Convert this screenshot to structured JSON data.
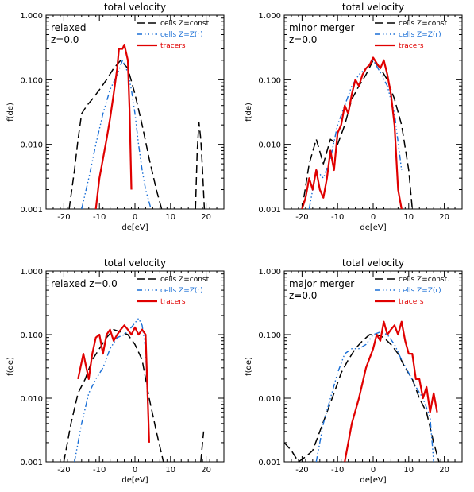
{
  "chart_data": [
    {
      "type": "line",
      "title": "total velocity",
      "xlabel": "de[eV]",
      "ylabel": "f(de)",
      "xlim": [
        -25,
        25
      ],
      "ylim": [
        0.001,
        1.0
      ],
      "yscale": "log",
      "x_ticks": [
        "-20",
        "-10",
        "0",
        "10",
        "20"
      ],
      "y_ticks": [
        "0.001",
        "0.010",
        "0.100",
        "1.000"
      ],
      "annotation": [
        "relaxed",
        "z=0.0"
      ],
      "legend_position": "top-right",
      "series": [
        {
          "name": "cells Z=const",
          "color": "#000000",
          "style": "dashed",
          "x": [
            -18.5,
            -17,
            -16,
            -15,
            -13.5,
            -12,
            -10,
            -8,
            -6,
            -4,
            -2,
            0,
            2,
            4,
            6,
            7.5
          ],
          "y": [
            0.001,
            0.004,
            0.012,
            0.03,
            0.04,
            0.05,
            0.07,
            0.1,
            0.15,
            0.2,
            0.15,
            0.06,
            0.02,
            0.006,
            0.002,
            0.001
          ]
        },
        {
          "name": "cells Z=Z(r)",
          "color": "#1a6fd6",
          "style": "dash-dot",
          "x": [
            -15,
            -13,
            -11,
            -9,
            -7,
            -5,
            -3.5,
            -2,
            -1,
            0,
            1,
            2,
            3,
            4.5
          ],
          "y": [
            0.001,
            0.003,
            0.01,
            0.03,
            0.07,
            0.12,
            0.2,
            0.13,
            0.07,
            0.03,
            0.01,
            0.004,
            0.002,
            0.001
          ]
        },
        {
          "name": "tracers",
          "color": "#e00000",
          "style": "solid",
          "x": [
            -11,
            -10,
            -9,
            -8,
            -7,
            -6,
            -5,
            -4.5,
            -3.5,
            -3,
            -2,
            -1.5,
            -1
          ],
          "y": [
            0.001,
            0.003,
            0.006,
            0.012,
            0.025,
            0.06,
            0.15,
            0.3,
            0.3,
            0.35,
            0.2,
            0.03,
            0.002
          ]
        },
        {
          "name": "",
          "color": "#000000",
          "style": "dashed",
          "x": [
            17,
            17.5,
            18,
            18.5,
            19,
            19.5
          ],
          "y": [
            0.001,
            0.008,
            0.022,
            0.012,
            0.004,
            0.001
          ]
        }
      ]
    },
    {
      "type": "line",
      "title": "total velocity",
      "xlabel": "de[eV]",
      "ylabel": "f(de)",
      "xlim": [
        -25,
        25
      ],
      "ylim": [
        0.001,
        1.0
      ],
      "yscale": "log",
      "x_ticks": [
        "-20",
        "-10",
        "0",
        "10",
        "20"
      ],
      "y_ticks": [
        "0.001",
        "0.010",
        "0.100",
        "1.000"
      ],
      "annotation": [
        "minor merger",
        "z=0.0"
      ],
      "legend_position": "top-right",
      "series": [
        {
          "name": "cells Z=const",
          "color": "#000000",
          "style": "dashed",
          "x": [
            -20,
            -18,
            -16,
            -14,
            -12,
            -10,
            -8,
            -6,
            -4,
            -2,
            0,
            2,
            4,
            6,
            8,
            10,
            11
          ],
          "y": [
            0.001,
            0.005,
            0.012,
            0.005,
            0.012,
            0.01,
            0.02,
            0.05,
            0.08,
            0.12,
            0.2,
            0.15,
            0.1,
            0.05,
            0.02,
            0.004,
            0.001
          ]
        },
        {
          "name": "cells Z=Z(r)",
          "color": "#1a6fd6",
          "style": "dash-dot",
          "x": [
            -18,
            -16,
            -14,
            -12,
            -10,
            -8,
            -6,
            -4,
            -2,
            0,
            2,
            4,
            6,
            8
          ],
          "y": [
            0.001,
            0.004,
            0.003,
            0.006,
            0.02,
            0.04,
            0.08,
            0.12,
            0.15,
            0.2,
            0.13,
            0.08,
            0.03,
            0.004
          ]
        },
        {
          "name": "tracers",
          "color": "#e00000",
          "style": "solid",
          "x": [
            -20,
            -19,
            -18,
            -17,
            -16,
            -15,
            -14,
            -13,
            -12,
            -11,
            -10,
            -9,
            -8,
            -7,
            -6,
            -5,
            -4,
            -3,
            -2,
            -1,
            0,
            1,
            2,
            3,
            4,
            5,
            6,
            7,
            8
          ],
          "y": [
            0.001,
            0.0015,
            0.003,
            0.002,
            0.004,
            0.002,
            0.0015,
            0.003,
            0.008,
            0.004,
            0.015,
            0.02,
            0.04,
            0.03,
            0.06,
            0.1,
            0.08,
            0.12,
            0.15,
            0.17,
            0.22,
            0.18,
            0.15,
            0.2,
            0.12,
            0.06,
            0.02,
            0.002,
            0.001
          ]
        }
      ]
    },
    {
      "type": "line",
      "title": "total velocity",
      "xlabel": "de[eV]",
      "ylabel": "f(de)",
      "xlim": [
        -25,
        25
      ],
      "ylim": [
        0.001,
        1.0
      ],
      "yscale": "log",
      "x_ticks": [
        "-20",
        "-10",
        "0",
        "10",
        "20"
      ],
      "y_ticks": [
        "0.001",
        "0.010",
        "0.100",
        "1.000"
      ],
      "annotation": [
        "relaxed z=0.0"
      ],
      "legend_position": "top-right",
      "series": [
        {
          "name": "cells Z=const.",
          "color": "#000000",
          "style": "dashed",
          "x": [
            -20,
            -18,
            -16,
            -14,
            -12,
            -10,
            -8,
            -6,
            -4,
            -2,
            0,
            2,
            4,
            6,
            8
          ],
          "y": [
            0.001,
            0.004,
            0.012,
            0.02,
            0.04,
            0.06,
            0.09,
            0.12,
            0.11,
            0.1,
            0.07,
            0.04,
            0.01,
            0.003,
            0.001
          ]
        },
        {
          "name": "cells Z=Z(r)",
          "color": "#1a6fd6",
          "style": "dash-dot",
          "x": [
            -17,
            -15,
            -13,
            -11,
            -9,
            -7,
            -5,
            -3,
            -1,
            1,
            2,
            3,
            4
          ],
          "y": [
            0.001,
            0.004,
            0.012,
            0.02,
            0.03,
            0.06,
            0.09,
            0.1,
            0.13,
            0.18,
            0.14,
            0.06,
            0.002
          ]
        },
        {
          "name": "tracers",
          "color": "#e00000",
          "style": "solid",
          "x": [
            -16,
            -14.5,
            -13,
            -12,
            -11,
            -10,
            -9,
            -8,
            -7,
            -6,
            -5,
            -4,
            -3,
            -2,
            -1,
            0,
            1,
            2,
            3,
            4
          ],
          "y": [
            0.02,
            0.05,
            0.02,
            0.05,
            0.09,
            0.1,
            0.05,
            0.1,
            0.12,
            0.08,
            0.1,
            0.12,
            0.14,
            0.12,
            0.1,
            0.13,
            0.1,
            0.12,
            0.1,
            0.002
          ]
        },
        {
          "name": "",
          "color": "#000000",
          "style": "dashed",
          "x": [
            18.5,
            19,
            19.3
          ],
          "y": [
            0.001,
            0.002,
            0.003
          ]
        }
      ]
    },
    {
      "type": "line",
      "title": "total velocity",
      "xlabel": "de[eV]",
      "ylabel": "f(de)",
      "xlim": [
        -25,
        25
      ],
      "ylim": [
        0.001,
        1.0
      ],
      "yscale": "log",
      "x_ticks": [
        "-20",
        "-10",
        "0",
        "10",
        "20"
      ],
      "y_ticks": [
        "0.001",
        "0.010",
        "0.100",
        "1.000"
      ],
      "annotation": [
        "major merger",
        "z=0.0"
      ],
      "legend_position": "top-right",
      "series": [
        {
          "name": "cells Z=const.",
          "color": "#000000",
          "style": "dashed",
          "x": [
            -25,
            -23,
            -21,
            -19,
            -17,
            -15,
            -13,
            -11,
            -9,
            -7,
            -5,
            -3,
            -1,
            1,
            3,
            5,
            7,
            9,
            11,
            13,
            15,
            17,
            18.5
          ],
          "y": [
            0.002,
            0.0015,
            0.001,
            0.0012,
            0.0015,
            0.003,
            0.006,
            0.012,
            0.025,
            0.04,
            0.06,
            0.08,
            0.1,
            0.1,
            0.09,
            0.07,
            0.05,
            0.03,
            0.02,
            0.01,
            0.006,
            0.002,
            0.001
          ]
        },
        {
          "name": "cells Z=Z(r)",
          "color": "#1a6fd6",
          "style": "dash-dot",
          "x": [
            -16,
            -14,
            -12,
            -10,
            -8,
            -6,
            -4,
            -2,
            0,
            2,
            4,
            6,
            8,
            10,
            12,
            14,
            16,
            17
          ],
          "y": [
            0.001,
            0.004,
            0.01,
            0.025,
            0.05,
            0.06,
            0.06,
            0.07,
            0.1,
            0.11,
            0.1,
            0.07,
            0.04,
            0.025,
            0.015,
            0.01,
            0.005,
            0.001
          ]
        },
        {
          "name": "tracers",
          "color": "#e00000",
          "style": "solid",
          "x": [
            -8,
            -6,
            -4,
            -2,
            0,
            1,
            2,
            3,
            4,
            5,
            6,
            7,
            8,
            9,
            10,
            11,
            12,
            13,
            14,
            15,
            16,
            17,
            18
          ],
          "y": [
            0.001,
            0.004,
            0.01,
            0.03,
            0.06,
            0.1,
            0.08,
            0.16,
            0.1,
            0.12,
            0.14,
            0.1,
            0.16,
            0.08,
            0.05,
            0.05,
            0.02,
            0.02,
            0.01,
            0.015,
            0.006,
            0.012,
            0.006
          ]
        }
      ]
    }
  ]
}
